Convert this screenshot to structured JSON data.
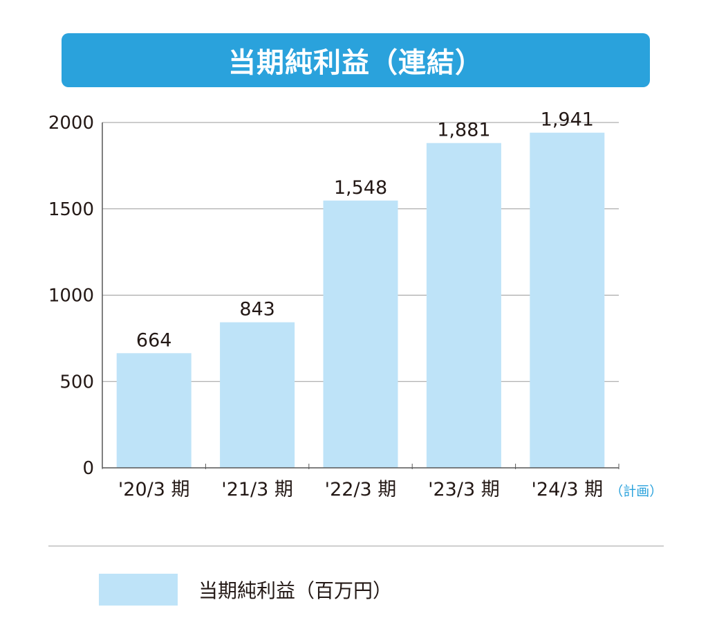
{
  "chart_data": {
    "type": "bar",
    "title": "当期純利益（連結）",
    "categories": [
      "'20/3 期",
      "'21/3 期",
      "'22/3 期",
      "'23/3 期",
      "'24/3 期"
    ],
    "category_notes": [
      "",
      "",
      "",
      "",
      "（計画）"
    ],
    "series": [
      {
        "name": "当期純利益（百万円）",
        "values": [
          664,
          843,
          1548,
          1881,
          1941
        ],
        "value_labels": [
          "664",
          "843",
          "1,548",
          "1,881",
          "1,941"
        ]
      }
    ],
    "y_ticks": [
      0,
      500,
      1000,
      1500,
      2000
    ],
    "ylim": [
      0,
      2000
    ],
    "grid": true,
    "legend_position": "bottom-left"
  },
  "colors": {
    "title_bg": "#2aa2dc",
    "bar": "#bee3f8",
    "note": "#2aa2dc",
    "grid": "#9a9a9a",
    "axis": "#555555",
    "text": "#231815"
  }
}
